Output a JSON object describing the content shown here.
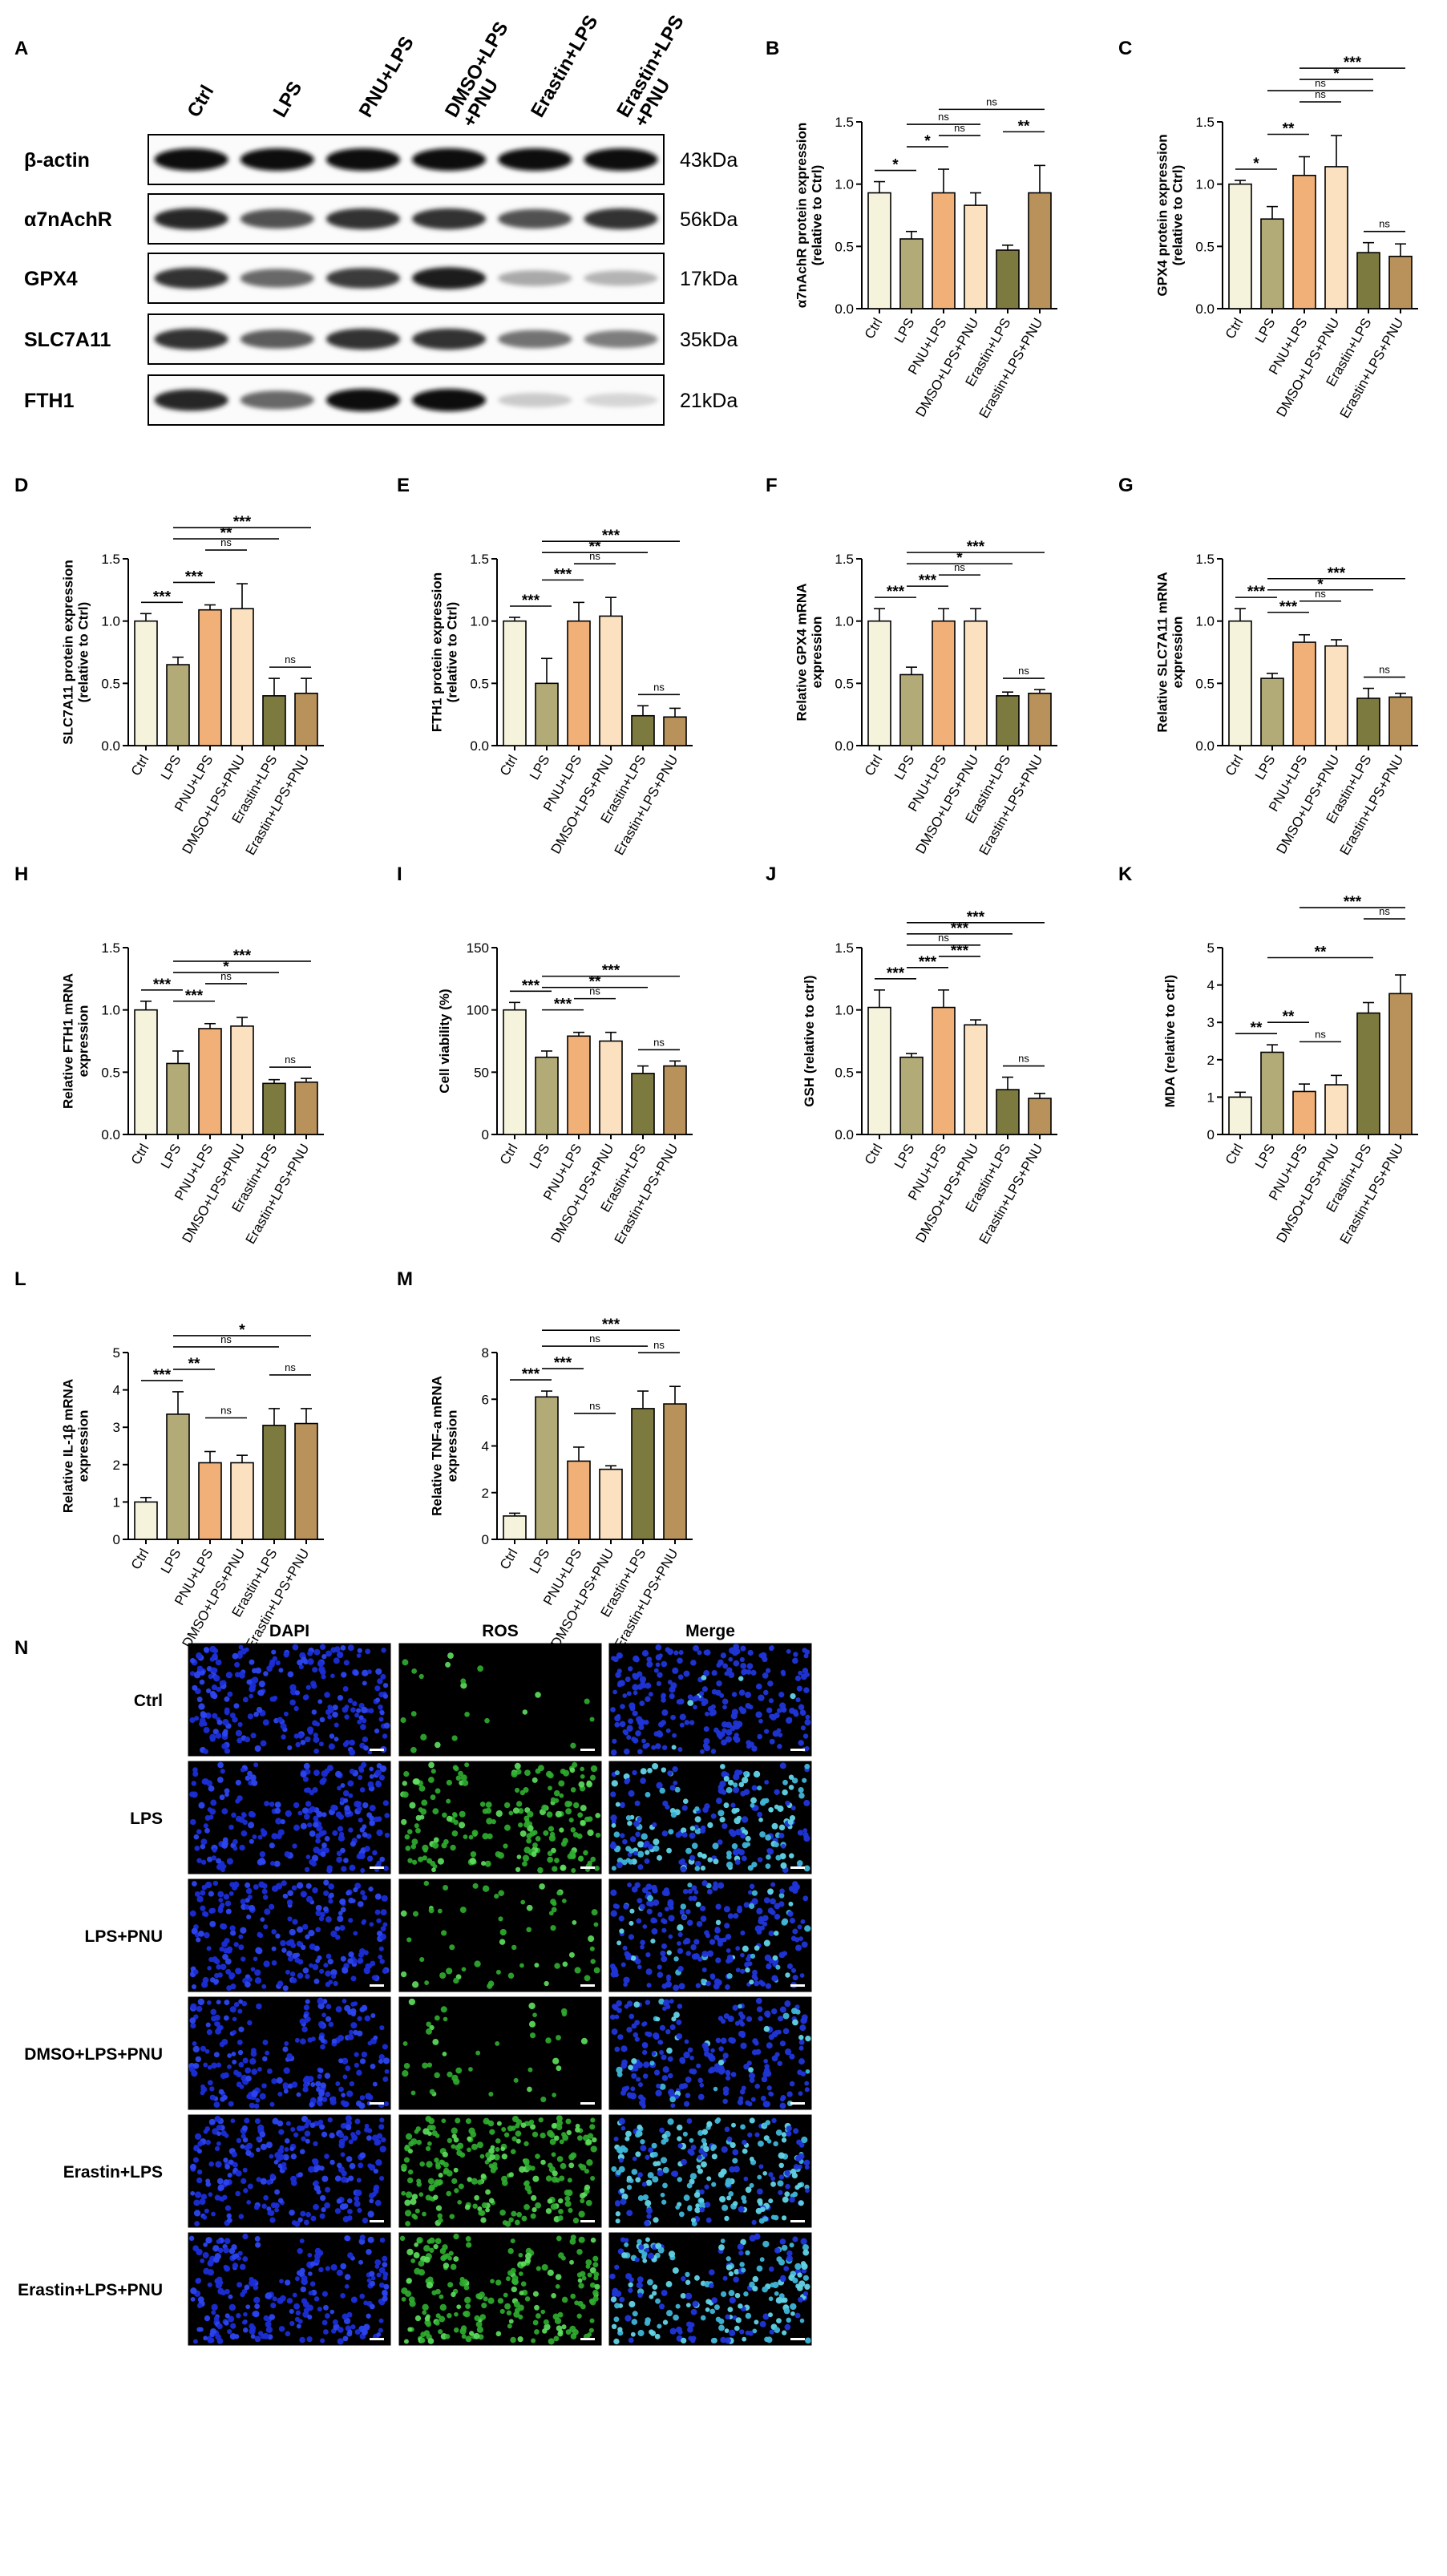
{
  "colors": {
    "Ctrl": "#f6f3dd",
    "LPS": "#b3ab77",
    "PNU+LPS": "#f1b077",
    "DMSO+LPS+PNU": "#fbe1c0",
    "Erastin+LPS": "#7d7a3f",
    "Erastin+LPS+PNU": "#b8925a"
  },
  "western_blot": {
    "letter": "A",
    "lanes": [
      "Ctrl",
      "LPS",
      "PNU+LPS",
      "DMSO+LPS\n+PNU",
      "Erastin+LPS",
      "Erastin+LPS\n+PNU"
    ],
    "rows": [
      {
        "protein": "β-actin",
        "size": "43kDa",
        "bands": [
          1.0,
          1.0,
          1.0,
          1.0,
          1.0,
          1.0
        ]
      },
      {
        "protein": "α7nAchR",
        "size": "56kDa",
        "bands": [
          0.9,
          0.7,
          0.85,
          0.85,
          0.7,
          0.85
        ]
      },
      {
        "protein": "GPX4",
        "size": "17kDa",
        "bands": [
          0.85,
          0.6,
          0.8,
          0.95,
          0.3,
          0.25
        ]
      },
      {
        "protein": "SLC7A11",
        "size": "35kDa",
        "bands": [
          0.85,
          0.65,
          0.85,
          0.85,
          0.55,
          0.5
        ]
      },
      {
        "protein": "FTH1",
        "size": "21kDa",
        "bands": [
          0.9,
          0.6,
          1.0,
          1.0,
          0.15,
          0.1
        ]
      }
    ]
  },
  "chart_data": [
    {
      "letter": "B",
      "type": "bar",
      "ylabel": "α7nAchR protein expression\n(relative to Ctrl)",
      "ylim": [
        0,
        1.5
      ],
      "yticks": [
        "0.0",
        "0.5",
        "1.0",
        "1.5"
      ],
      "categories": [
        "Ctrl",
        "LPS",
        "PNU+LPS",
        "DMSO+LPS+PNU",
        "Erastin+LPS",
        "Erastin+LPS+PNU"
      ],
      "values": [
        0.93,
        0.56,
        0.93,
        0.83,
        0.47,
        0.93
      ],
      "errors": [
        0.09,
        0.06,
        0.19,
        0.1,
        0.04,
        0.22
      ],
      "significance": [
        {
          "from": 0,
          "to": 1,
          "label": "*",
          "level": 0
        },
        {
          "from": 1,
          "to": 2,
          "label": "*",
          "level": 1
        },
        {
          "from": 2,
          "to": 3,
          "label": "ns",
          "level": 2
        },
        {
          "from": 1,
          "to": 3,
          "label": "ns",
          "level": 3
        },
        {
          "from": 4,
          "to": 5,
          "label": "**",
          "level": 2
        },
        {
          "from": 2,
          "to": 5,
          "label": "ns",
          "level": 4
        }
      ]
    },
    {
      "letter": "C",
      "type": "bar",
      "ylabel": "GPX4 protein expression\n(relative to Ctrl)",
      "ylim": [
        0,
        1.5
      ],
      "yticks": [
        "0.0",
        "0.5",
        "1.0",
        "1.5"
      ],
      "categories": [
        "Ctrl",
        "LPS",
        "PNU+LPS",
        "DMSO+LPS+PNU",
        "Erastin+LPS",
        "Erastin+LPS+PNU"
      ],
      "values": [
        1.0,
        0.72,
        1.07,
        1.14,
        0.45,
        0.42
      ],
      "errors": [
        0.03,
        0.1,
        0.15,
        0.25,
        0.08,
        0.1
      ],
      "significance": [
        {
          "from": 0,
          "to": 1,
          "label": "*",
          "level": 0
        },
        {
          "from": 1,
          "to": 2,
          "label": "**",
          "level": 1
        },
        {
          "from": 2,
          "to": 3,
          "label": "ns",
          "level": 2
        },
        {
          "from": 4,
          "to": 5,
          "label": "ns",
          "level": 0
        },
        {
          "from": 1,
          "to": 4,
          "label": "ns",
          "level": 3
        },
        {
          "from": 2,
          "to": 4,
          "label": "*",
          "level": 4
        },
        {
          "from": 2,
          "to": 5,
          "label": "***",
          "level": 5
        }
      ]
    },
    {
      "letter": "D",
      "type": "bar",
      "ylabel": "SLC7A11 protein expression\n(relative to Ctrl)",
      "ylim": [
        0,
        1.5
      ],
      "yticks": [
        "0.0",
        "0.5",
        "1.0",
        "1.5"
      ],
      "categories": [
        "Ctrl",
        "LPS",
        "PNU+LPS",
        "DMSO+LPS+PNU",
        "Erastin+LPS",
        "Erastin+LPS+PNU"
      ],
      "values": [
        1.0,
        0.65,
        1.09,
        1.1,
        0.4,
        0.42
      ],
      "errors": [
        0.06,
        0.06,
        0.04,
        0.2,
        0.14,
        0.12
      ],
      "significance": [
        {
          "from": 0,
          "to": 1,
          "label": "***",
          "level": 0
        },
        {
          "from": 1,
          "to": 2,
          "label": "***",
          "level": 1
        },
        {
          "from": 2,
          "to": 3,
          "label": "ns",
          "level": 2
        },
        {
          "from": 4,
          "to": 5,
          "label": "ns",
          "level": 0
        },
        {
          "from": 1,
          "to": 4,
          "label": "**",
          "level": 3
        },
        {
          "from": 1,
          "to": 5,
          "label": "***",
          "level": 4
        }
      ]
    },
    {
      "letter": "E",
      "type": "bar",
      "ylabel": "FTH1 protein expression\n(relative to Ctrl)",
      "ylim": [
        0,
        1.5
      ],
      "yticks": [
        "0.0",
        "0.5",
        "1.0",
        "1.5"
      ],
      "categories": [
        "Ctrl",
        "LPS",
        "PNU+LPS",
        "DMSO+LPS+PNU",
        "Erastin+LPS",
        "Erastin+LPS+PNU"
      ],
      "values": [
        1.0,
        0.5,
        1.0,
        1.04,
        0.24,
        0.23
      ],
      "errors": [
        0.03,
        0.2,
        0.15,
        0.15,
        0.08,
        0.07
      ],
      "significance": [
        {
          "from": 0,
          "to": 1,
          "label": "***",
          "level": 0
        },
        {
          "from": 1,
          "to": 2,
          "label": "***",
          "level": 1
        },
        {
          "from": 2,
          "to": 3,
          "label": "ns",
          "level": 2
        },
        {
          "from": 4,
          "to": 5,
          "label": "ns",
          "level": 0
        },
        {
          "from": 1,
          "to": 4,
          "label": "**",
          "level": 3
        },
        {
          "from": 1,
          "to": 5,
          "label": "***",
          "level": 4
        }
      ]
    },
    {
      "letter": "F",
      "type": "bar",
      "ylabel": "Relative GPX4 mRNA\nexpression",
      "ylim": [
        0,
        1.5
      ],
      "yticks": [
        "0.0",
        "0.5",
        "1.0",
        "1.5"
      ],
      "categories": [
        "Ctrl",
        "LPS",
        "PNU+LPS",
        "DMSO+LPS+PNU",
        "Erastin+LPS",
        "Erastin+LPS+PNU"
      ],
      "values": [
        1.0,
        0.57,
        1.0,
        1.0,
        0.4,
        0.42
      ],
      "errors": [
        0.1,
        0.06,
        0.1,
        0.1,
        0.03,
        0.03
      ],
      "significance": [
        {
          "from": 0,
          "to": 1,
          "label": "***",
          "level": 0
        },
        {
          "from": 1,
          "to": 2,
          "label": "***",
          "level": 1
        },
        {
          "from": 2,
          "to": 3,
          "label": "ns",
          "level": 2
        },
        {
          "from": 4,
          "to": 5,
          "label": "ns",
          "level": 0
        },
        {
          "from": 1,
          "to": 4,
          "label": "*",
          "level": 3
        },
        {
          "from": 1,
          "to": 5,
          "label": "***",
          "level": 4
        }
      ]
    },
    {
      "letter": "G",
      "type": "bar",
      "ylabel": "Relative SLC7A11 mRNA\nexpression",
      "ylim": [
        0,
        1.5
      ],
      "yticks": [
        "0.0",
        "0.5",
        "1.0",
        "1.5"
      ],
      "categories": [
        "Ctrl",
        "LPS",
        "PNU+LPS",
        "DMSO+LPS+PNU",
        "Erastin+LPS",
        "Erastin+LPS+PNU"
      ],
      "values": [
        1.0,
        0.54,
        0.83,
        0.8,
        0.38,
        0.39
      ],
      "errors": [
        0.1,
        0.04,
        0.06,
        0.05,
        0.08,
        0.03
      ],
      "significance": [
        {
          "from": 0,
          "to": 1,
          "label": "***",
          "level": 0
        },
        {
          "from": 1,
          "to": 2,
          "label": "***",
          "level": 1
        },
        {
          "from": 2,
          "to": 3,
          "label": "ns",
          "level": 2
        },
        {
          "from": 4,
          "to": 5,
          "label": "ns",
          "level": 0
        },
        {
          "from": 1,
          "to": 4,
          "label": "*",
          "level": 3
        },
        {
          "from": 1,
          "to": 5,
          "label": "***",
          "level": 4
        }
      ]
    },
    {
      "letter": "H",
      "type": "bar",
      "ylabel": "Relative FTH1 mRNA\nexpression",
      "ylim": [
        0,
        1.5
      ],
      "yticks": [
        "0.0",
        "0.5",
        "1.0",
        "1.5"
      ],
      "categories": [
        "Ctrl",
        "LPS",
        "PNU+LPS",
        "DMSO+LPS+PNU",
        "Erastin+LPS",
        "Erastin+LPS+PNU"
      ],
      "values": [
        1.0,
        0.57,
        0.85,
        0.87,
        0.41,
        0.42
      ],
      "errors": [
        0.07,
        0.1,
        0.04,
        0.07,
        0.03,
        0.03
      ],
      "significance": [
        {
          "from": 0,
          "to": 1,
          "label": "***",
          "level": 0
        },
        {
          "from": 1,
          "to": 2,
          "label": "***",
          "level": 1
        },
        {
          "from": 2,
          "to": 3,
          "label": "ns",
          "level": 2
        },
        {
          "from": 4,
          "to": 5,
          "label": "ns",
          "level": 0
        },
        {
          "from": 1,
          "to": 4,
          "label": "*",
          "level": 3
        },
        {
          "from": 1,
          "to": 5,
          "label": "***",
          "level": 4
        }
      ]
    },
    {
      "letter": "I",
      "type": "bar",
      "ylabel": "Cell viability (%)",
      "ylim": [
        0,
        150
      ],
      "yticks": [
        "0",
        "50",
        "100",
        "150"
      ],
      "categories": [
        "Ctrl",
        "LPS",
        "PNU+LPS",
        "DMSO+LPS+PNU",
        "Erastin+LPS",
        "Erastin+LPS+PNU"
      ],
      "values": [
        100,
        62,
        79,
        75,
        49,
        55
      ],
      "errors": [
        6,
        5,
        3,
        7,
        6,
        4
      ],
      "significance": [
        {
          "from": 0,
          "to": 1,
          "label": "***",
          "level": 0
        },
        {
          "from": 1,
          "to": 2,
          "label": "***",
          "level": 1
        },
        {
          "from": 2,
          "to": 3,
          "label": "ns",
          "level": 2
        },
        {
          "from": 4,
          "to": 5,
          "label": "ns",
          "level": 0
        },
        {
          "from": 1,
          "to": 4,
          "label": "**",
          "level": 3
        },
        {
          "from": 1,
          "to": 5,
          "label": "***",
          "level": 4
        }
      ]
    },
    {
      "letter": "J",
      "type": "bar",
      "ylabel": "GSH (relative to ctrl)",
      "ylim": [
        0,
        1.5
      ],
      "yticks": [
        "0.0",
        "0.5",
        "1.0",
        "1.5"
      ],
      "categories": [
        "Ctrl",
        "LPS",
        "PNU+LPS",
        "DMSO+LPS+PNU",
        "Erastin+LPS",
        "Erastin+LPS+PNU"
      ],
      "values": [
        1.02,
        0.62,
        1.02,
        0.88,
        0.36,
        0.29
      ],
      "errors": [
        0.14,
        0.03,
        0.14,
        0.04,
        0.1,
        0.04
      ],
      "significance": [
        {
          "from": 0,
          "to": 1,
          "label": "***",
          "level": 0
        },
        {
          "from": 1,
          "to": 2,
          "label": "***",
          "level": 1
        },
        {
          "from": 2,
          "to": 3,
          "label": "***",
          "level": 2
        },
        {
          "from": 4,
          "to": 5,
          "label": "ns",
          "level": 0
        },
        {
          "from": 1,
          "to": 3,
          "label": "ns",
          "level": 3
        },
        {
          "from": 1,
          "to": 4,
          "label": "***",
          "level": 4
        },
        {
          "from": 1,
          "to": 5,
          "label": "***",
          "level": 5
        }
      ]
    },
    {
      "letter": "K",
      "type": "bar",
      "ylabel": "MDA (relative to ctrl)",
      "ylim": [
        0,
        5
      ],
      "yticks": [
        "0",
        "1",
        "2",
        "3",
        "4",
        "5"
      ],
      "categories": [
        "Ctrl",
        "LPS",
        "PNU+LPS",
        "DMSO+LPS+PNU",
        "Erastin+LPS",
        "Erastin+LPS+PNU"
      ],
      "values": [
        1.0,
        2.2,
        1.15,
        1.33,
        3.25,
        3.77
      ],
      "errors": [
        0.13,
        0.2,
        0.2,
        0.25,
        0.28,
        0.5
      ],
      "significance": [
        {
          "from": 0,
          "to": 1,
          "label": "**",
          "level": 0
        },
        {
          "from": 1,
          "to": 2,
          "label": "**",
          "level": 1
        },
        {
          "from": 2,
          "to": 3,
          "label": "ns",
          "level": 2
        },
        {
          "from": 1,
          "to": 4,
          "label": "**",
          "level": 3
        },
        {
          "from": 4,
          "to": 5,
          "label": "ns",
          "level": 4
        },
        {
          "from": 2,
          "to": 5,
          "label": "***",
          "level": 5
        }
      ]
    },
    {
      "letter": "L",
      "type": "bar",
      "ylabel": "Relative IL-1β mRNA\nexpression",
      "ylim": [
        0,
        5
      ],
      "yticks": [
        "0",
        "1",
        "2",
        "3",
        "4",
        "5"
      ],
      "categories": [
        "Ctrl",
        "LPS",
        "PNU+LPS",
        "DMSO+LPS+PNU",
        "Erastin+LPS",
        "Erastin+LPS+PNU"
      ],
      "values": [
        1.0,
        3.35,
        2.05,
        2.05,
        3.05,
        3.1
      ],
      "errors": [
        0.12,
        0.6,
        0.3,
        0.2,
        0.45,
        0.4
      ],
      "significance": [
        {
          "from": 0,
          "to": 1,
          "label": "***",
          "level": 0
        },
        {
          "from": 1,
          "to": 2,
          "label": "**",
          "level": 1
        },
        {
          "from": 2,
          "to": 3,
          "label": "ns",
          "level": 2
        },
        {
          "from": 1,
          "to": 4,
          "label": "ns",
          "level": 3
        },
        {
          "from": 4,
          "to": 5,
          "label": "ns",
          "level": 2
        },
        {
          "from": 1,
          "to": 5,
          "label": "*",
          "level": 4
        }
      ]
    },
    {
      "letter": "M",
      "type": "bar",
      "ylabel": "Relative TNF-a mRNA\nexpression",
      "ylim": [
        0,
        8
      ],
      "yticks": [
        "0",
        "2",
        "4",
        "6",
        "8"
      ],
      "categories": [
        "Ctrl",
        "LPS",
        "PNU+LPS",
        "DMSO+LPS+PNU",
        "Erastin+LPS",
        "Erastin+LPS+PNU"
      ],
      "values": [
        1.0,
        6.1,
        3.35,
        3.0,
        5.6,
        5.8
      ],
      "errors": [
        0.12,
        0.25,
        0.6,
        0.15,
        0.75,
        0.75
      ],
      "significance": [
        {
          "from": 0,
          "to": 1,
          "label": "***",
          "level": 0
        },
        {
          "from": 1,
          "to": 2,
          "label": "***",
          "level": 1
        },
        {
          "from": 2,
          "to": 3,
          "label": "ns",
          "level": 2
        },
        {
          "from": 1,
          "to": 4,
          "label": "ns",
          "level": 3
        },
        {
          "from": 4,
          "to": 5,
          "label": "ns",
          "level": 2
        },
        {
          "from": 1,
          "to": 5,
          "label": "***",
          "level": 4
        }
      ]
    }
  ],
  "fluorescence": {
    "letter": "N",
    "columns": [
      "DAPI",
      "ROS",
      "Merge"
    ],
    "rows": [
      {
        "label": "Ctrl",
        "ros": 0.05
      },
      {
        "label": "LPS",
        "ros": 0.8
      },
      {
        "label": "LPS+PNU",
        "ros": 0.2
      },
      {
        "label": "DMSO+LPS+PNU",
        "ros": 0.15
      },
      {
        "label": "Erastin+LPS",
        "ros": 0.95
      },
      {
        "label": "Erastin+LPS+PNU",
        "ros": 0.85
      }
    ]
  }
}
